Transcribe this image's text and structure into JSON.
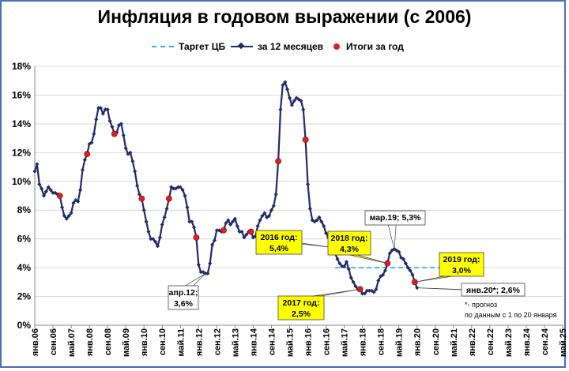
{
  "title": "Инфляция в годовом выражении (с 2006)",
  "legend": {
    "target": "Таргет ЦБ",
    "monthly": "за 12 месяцев",
    "yearly": "Итоги за год"
  },
  "colors": {
    "line": "#1f2a6b",
    "target": "#2eaadc",
    "dots": "#e02020",
    "callout_yellow": "#ffff00"
  },
  "footnote": [
    "*- прогноз",
    "по данным с 1 по 20 января"
  ],
  "chart_data": {
    "type": "line",
    "title": "Инфляция в годовом выражении (с 2006)",
    "x_unit": "months since янв.06",
    "ylim": [
      0,
      18
    ],
    "y_ticks": [
      "0%",
      "2%",
      "4%",
      "6%",
      "8%",
      "10%",
      "12%",
      "14%",
      "16%",
      "18%"
    ],
    "grid": true,
    "legend_position": "top",
    "x_tick_labels": [
      "янв.06",
      "сен.06",
      "май.07",
      "янв.08",
      "сен.08",
      "май.09",
      "янв.10",
      "сен.10",
      "май.11",
      "янв.12",
      "сен.12",
      "май.13",
      "янв.14",
      "сен.14",
      "май.15",
      "янв.16",
      "сен.16",
      "май.17",
      "янв.18",
      "сен.18",
      "май.19",
      "янв.20",
      "сен.20",
      "май.21",
      "янв.22",
      "сен.22",
      "май.23",
      "янв.24",
      "сен.24",
      "май.25"
    ],
    "series": [
      {
        "name": "за 12 месяцев",
        "values": [
          10.7,
          11.2,
          9.8,
          9.5,
          9.0,
          9.3,
          9.6,
          9.4,
          9.2,
          9.2,
          9.1,
          9.0,
          8.2,
          7.6,
          7.4,
          7.6,
          7.8,
          8.5,
          8.7,
          8.6,
          9.4,
          10.8,
          11.5,
          11.9,
          12.6,
          12.7,
          13.3,
          14.3,
          15.1,
          15.1,
          14.7,
          15.0,
          15.0,
          14.2,
          13.8,
          13.3,
          13.4,
          13.9,
          14.0,
          13.2,
          12.3,
          11.9,
          12.0,
          11.4,
          10.7,
          9.7,
          9.1,
          8.8,
          8.0,
          7.2,
          6.5,
          6.0,
          6.0,
          5.8,
          5.5,
          6.1,
          7.0,
          7.5,
          8.1,
          8.8,
          9.6,
          9.5,
          9.5,
          9.6,
          9.6,
          9.4,
          9.0,
          8.2,
          7.2,
          7.2,
          6.8,
          6.1,
          4.2,
          3.7,
          3.7,
          3.6,
          3.6,
          4.3,
          5.6,
          5.9,
          6.6,
          6.6,
          6.5,
          6.6,
          7.1,
          7.3,
          7.0,
          7.2,
          7.4,
          6.9,
          6.5,
          6.5,
          6.1,
          6.3,
          6.5,
          6.5,
          6.1,
          6.2,
          6.9,
          7.3,
          7.6,
          7.8,
          7.5,
          7.6,
          8.0,
          8.3,
          9.1,
          11.4,
          15.0,
          16.7,
          16.9,
          16.4,
          15.8,
          15.3,
          15.6,
          15.8,
          15.7,
          15.6,
          15.0,
          12.9,
          9.8,
          8.1,
          7.3,
          7.2,
          7.3,
          7.5,
          7.2,
          6.9,
          6.4,
          6.1,
          5.8,
          5.4,
          5.0,
          4.6,
          4.3,
          4.1,
          4.1,
          4.4,
          3.9,
          3.3,
          3.0,
          2.7,
          2.5,
          2.5,
          2.2,
          2.2,
          2.4,
          2.4,
          2.4,
          2.3,
          2.5,
          3.1,
          3.4,
          3.5,
          3.8,
          4.3,
          5.0,
          5.2,
          5.3,
          5.2,
          5.1,
          4.7,
          4.6,
          4.3,
          4.0,
          3.8,
          3.5,
          3.0,
          2.6
        ],
        "color": "#1f2a6b"
      },
      {
        "name": "Итоги за год",
        "x": [
          11,
          23,
          35,
          47,
          59,
          71,
          83,
          95,
          107,
          119,
          131,
          143,
          155,
          167
        ],
        "values": [
          9.0,
          11.9,
          13.3,
          8.8,
          8.8,
          6.1,
          6.6,
          6.5,
          11.4,
          12.9,
          5.4,
          2.5,
          4.3,
          3.0
        ],
        "color": "#e02020"
      },
      {
        "name": "Таргет ЦБ",
        "x_range": [
          132,
          180
        ],
        "values": [
          4.0,
          4.0
        ],
        "color": "#2eaadc"
      }
    ],
    "annotations": [
      {
        "text": [
          "апр.12;",
          "3,6%"
        ],
        "x": 75,
        "y": 3.6,
        "style": "white"
      },
      {
        "text": [
          "2016 год:",
          "5,4%"
        ],
        "x": 131,
        "y": 5.4,
        "style": "yellow"
      },
      {
        "text": [
          "2017 год:",
          "2,5%"
        ],
        "x": 143,
        "y": 2.5,
        "style": "yellow"
      },
      {
        "text": [
          "2018 год:",
          "4,3%"
        ],
        "x": 155,
        "y": 4.3,
        "style": "yellow"
      },
      {
        "text": [
          "мар.19; 5,3%"
        ],
        "x": 158,
        "y": 5.3,
        "style": "white"
      },
      {
        "text": [
          "2019 год:",
          "3,0%"
        ],
        "x": 167,
        "y": 3.0,
        "style": "yellow"
      },
      {
        "text": [
          "янв.20*; 2,6%"
        ],
        "x": 168,
        "y": 2.6,
        "style": "white"
      }
    ]
  }
}
